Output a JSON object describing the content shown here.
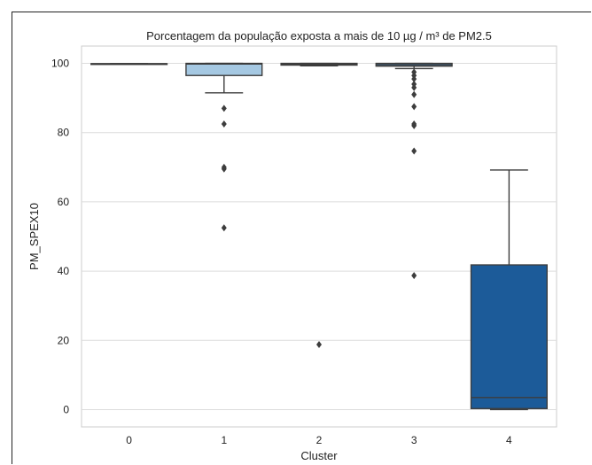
{
  "chart_data": {
    "type": "box",
    "title": "Porcentagem da população exposta a mais de 10 µg / m³ de PM2.5",
    "xlabel": "Cluster",
    "ylabel": "PM_SPEX10",
    "ylim": [
      -5,
      105
    ],
    "yticks": [
      0,
      20,
      40,
      60,
      80,
      100
    ],
    "categories": [
      "0",
      "1",
      "2",
      "3",
      "4"
    ],
    "grid": "horizontal",
    "boxes": [
      {
        "cluster": "0",
        "whisker_low": 99.9,
        "q1": 99.9,
        "median": 99.9,
        "q3": 99.9,
        "whisker_high": 99.9,
        "color": "#e8eef6",
        "outliers": []
      },
      {
        "cluster": "1",
        "whisker_low": 91.5,
        "q1": 96.5,
        "median": 99.8,
        "q3": 100,
        "whisker_high": 100,
        "color": "#a5c8e2",
        "outliers": [
          87,
          82.5,
          70,
          69.5,
          52.5
        ]
      },
      {
        "cluster": "2",
        "whisker_low": 99.3,
        "q1": 99.5,
        "median": 99.7,
        "q3": 100,
        "whisker_high": 100,
        "color": "#6ca5d4",
        "outliers": [
          18.8
        ]
      },
      {
        "cluster": "3",
        "whisker_low": 98.5,
        "q1": 99.2,
        "median": 99.6,
        "q3": 100,
        "whisker_high": 100,
        "color": "#3b86c2",
        "outliers": [
          97.5,
          96.5,
          95.5,
          94,
          93,
          91,
          87.5,
          82.5,
          82,
          74.7,
          38.7
        ]
      },
      {
        "cluster": "4",
        "whisker_low": 0,
        "q1": 0.3,
        "median": 3.5,
        "q3": 41.8,
        "whisker_high": 69.2,
        "color": "#1c5b99",
        "outliers": []
      }
    ]
  }
}
